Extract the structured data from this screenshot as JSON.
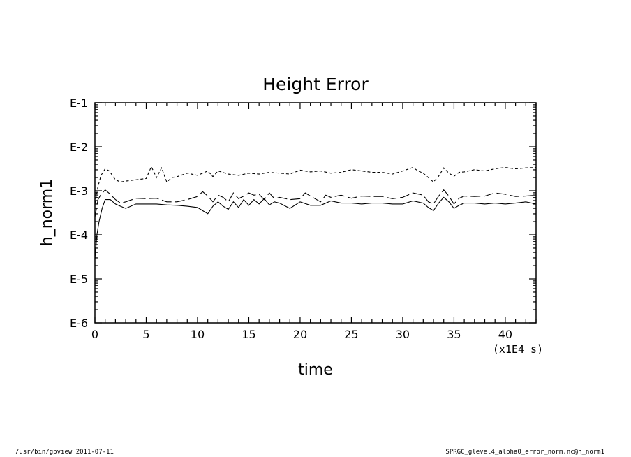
{
  "footer": {
    "left": "/usr/bin/gpview  2011-07-11",
    "right": "SPRGC_glevel4_alpha0_error_norm.nc@h_norm1"
  },
  "chart_data": {
    "type": "line",
    "title": "Height Error",
    "xlabel": "time",
    "ylabel": "h_norm1",
    "x_unit_label": "(x1E4 s)",
    "xlim": [
      0,
      43
    ],
    "ylim": [
      -6,
      -1
    ],
    "y_scale": "log",
    "x_ticks": [
      0,
      5,
      10,
      15,
      20,
      25,
      30,
      35,
      40
    ],
    "y_ticks": [
      -1,
      -2,
      -3,
      -4,
      -5,
      -6
    ],
    "y_tick_labels": [
      "E-1",
      "E-2",
      "E-3",
      "E-4",
      "E-5",
      "E-6"
    ],
    "grid": false,
    "legend": "none",
    "series": [
      {
        "style": "dashed",
        "x": [
          0,
          0.3,
          0.6,
          1.0,
          1.4,
          2.0,
          2.5,
          3.0,
          4.0,
          5.0,
          5.5,
          6.0,
          6.5,
          7.0,
          7.5,
          8.0,
          9.0,
          10.0,
          11.0,
          11.5,
          12.0,
          13.0,
          14.0,
          15.0,
          16.0,
          17.0,
          18.0,
          19.0,
          20.0,
          21.0,
          22.0,
          23.0,
          24.0,
          25.0,
          26.0,
          27.0,
          28.0,
          29.0,
          30.0,
          31.0,
          31.5,
          32.0,
          33.0,
          33.5,
          34.0,
          34.5,
          35.0,
          35.5,
          36.0,
          37.0,
          38.0,
          39.0,
          40.0,
          41.0,
          42.0,
          43.0
        ],
        "y": [
          -3.3,
          -2.9,
          -2.65,
          -2.5,
          -2.55,
          -2.75,
          -2.8,
          -2.78,
          -2.75,
          -2.72,
          -2.45,
          -2.7,
          -2.48,
          -2.8,
          -2.7,
          -2.68,
          -2.6,
          -2.65,
          -2.55,
          -2.68,
          -2.55,
          -2.62,
          -2.65,
          -2.6,
          -2.62,
          -2.58,
          -2.6,
          -2.62,
          -2.53,
          -2.57,
          -2.55,
          -2.6,
          -2.58,
          -2.52,
          -2.55,
          -2.58,
          -2.58,
          -2.62,
          -2.55,
          -2.47,
          -2.55,
          -2.6,
          -2.8,
          -2.67,
          -2.48,
          -2.6,
          -2.67,
          -2.58,
          -2.57,
          -2.52,
          -2.55,
          -2.5,
          -2.47,
          -2.5,
          -2.48,
          -2.47
        ]
      },
      {
        "style": "long-dash",
        "x": [
          0,
          0.3,
          0.6,
          1.0,
          1.5,
          2.0,
          2.5,
          3.0,
          4.0,
          5.0,
          6.0,
          7.0,
          8.0,
          9.0,
          10.0,
          10.5,
          11.0,
          11.5,
          12.0,
          12.5,
          13.0,
          13.5,
          14.0,
          14.5,
          15.0,
          15.5,
          16.0,
          16.5,
          17.0,
          17.5,
          18.0,
          19.0,
          20.0,
          20.5,
          21.0,
          22.0,
          22.5,
          23.0,
          24.0,
          25.0,
          26.0,
          27.0,
          28.0,
          29.0,
          30.0,
          31.0,
          32.0,
          32.5,
          33.0,
          33.5,
          34.0,
          34.5,
          35.0,
          35.5,
          36.0,
          37.0,
          38.0,
          39.0,
          40.0,
          41.0,
          42.0,
          43.0
        ],
        "y": [
          -3.6,
          -3.2,
          -3.08,
          -2.98,
          -3.08,
          -3.2,
          -3.28,
          -3.25,
          -3.17,
          -3.18,
          -3.17,
          -3.25,
          -3.25,
          -3.2,
          -3.13,
          -3.02,
          -3.12,
          -3.25,
          -3.1,
          -3.15,
          -3.25,
          -3.05,
          -3.18,
          -3.12,
          -3.05,
          -3.1,
          -3.08,
          -3.2,
          -3.05,
          -3.18,
          -3.15,
          -3.2,
          -3.18,
          -3.05,
          -3.12,
          -3.25,
          -3.1,
          -3.15,
          -3.1,
          -3.17,
          -3.12,
          -3.13,
          -3.13,
          -3.18,
          -3.15,
          -3.05,
          -3.1,
          -3.25,
          -3.3,
          -3.12,
          -2.98,
          -3.12,
          -3.3,
          -3.17,
          -3.12,
          -3.13,
          -3.12,
          -3.05,
          -3.08,
          -3.13,
          -3.12,
          -3.1
        ]
      },
      {
        "style": "solid",
        "x": [
          0,
          0.2,
          0.4,
          0.7,
          1.0,
          1.5,
          2.0,
          2.5,
          3.0,
          4.0,
          5.0,
          6.0,
          7.0,
          8.0,
          9.0,
          10.0,
          10.5,
          11.0,
          11.5,
          12.0,
          12.5,
          13.0,
          13.5,
          14.0,
          14.5,
          15.0,
          15.5,
          16.0,
          16.5,
          17.0,
          17.5,
          18.0,
          19.0,
          20.0,
          21.0,
          22.0,
          23.0,
          24.0,
          25.0,
          26.0,
          27.0,
          28.0,
          29.0,
          30.0,
          31.0,
          32.0,
          32.5,
          33.0,
          33.5,
          34.0,
          34.5,
          35.0,
          35.5,
          36.0,
          37.0,
          38.0,
          39.0,
          40.0,
          41.0,
          42.0,
          43.0
        ],
        "y": [
          -4.55,
          -4.0,
          -3.7,
          -3.4,
          -3.2,
          -3.2,
          -3.3,
          -3.35,
          -3.4,
          -3.3,
          -3.3,
          -3.3,
          -3.32,
          -3.33,
          -3.35,
          -3.38,
          -3.45,
          -3.52,
          -3.35,
          -3.25,
          -3.35,
          -3.42,
          -3.25,
          -3.38,
          -3.2,
          -3.33,
          -3.2,
          -3.3,
          -3.18,
          -3.32,
          -3.25,
          -3.28,
          -3.4,
          -3.25,
          -3.33,
          -3.33,
          -3.23,
          -3.28,
          -3.28,
          -3.3,
          -3.28,
          -3.28,
          -3.3,
          -3.3,
          -3.23,
          -3.28,
          -3.38,
          -3.45,
          -3.28,
          -3.15,
          -3.25,
          -3.4,
          -3.33,
          -3.28,
          -3.28,
          -3.3,
          -3.28,
          -3.3,
          -3.28,
          -3.25,
          -3.3
        ]
      }
    ]
  }
}
